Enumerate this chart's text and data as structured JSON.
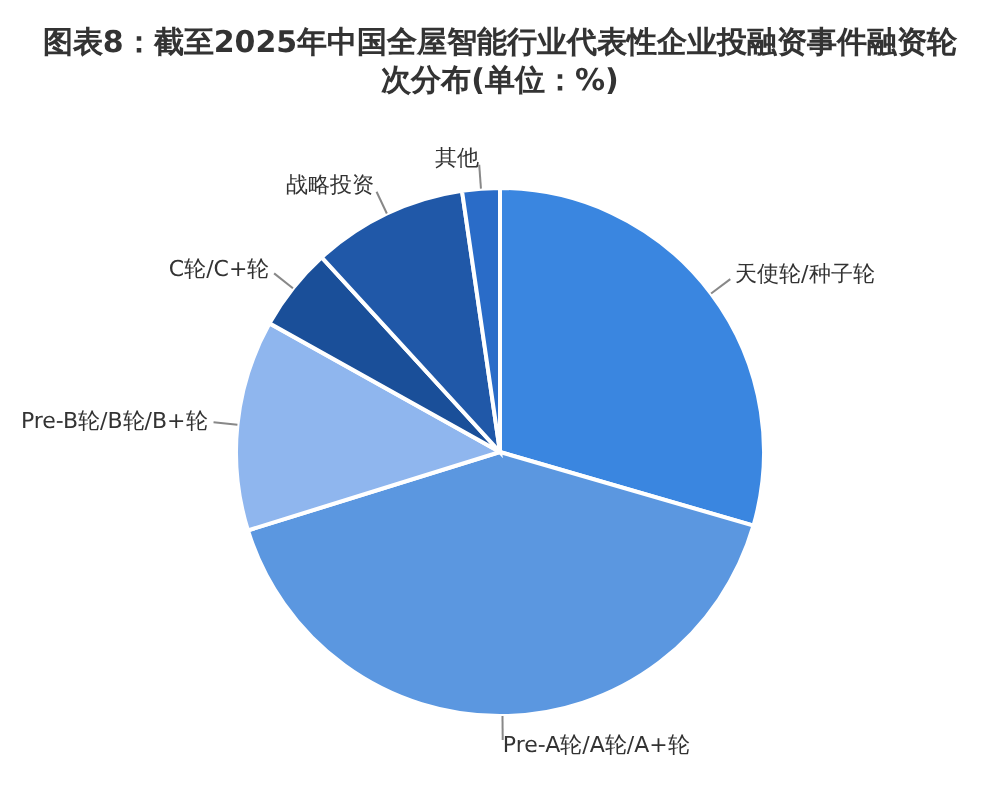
{
  "chart_data": {
    "type": "pie",
    "title": "图表8：截至2025年中国全屋智能行业代表性企业投融资事件融资轮次分布(单位：%)",
    "categories": [
      "天使轮/种子轮",
      "Pre-A轮/A轮/A+轮",
      "Pre-B轮/B轮/B+轮",
      "C轮/C+轮",
      "战略投资",
      "其他"
    ],
    "values": [
      29.5,
      40.7,
      12.9,
      5.1,
      9.5,
      2.3
    ],
    "colors": [
      "#3a86e0",
      "#5b97e0",
      "#8fb6ee",
      "#1a4f99",
      "#2058a8",
      "#2a6cc8"
    ],
    "legend": false
  }
}
